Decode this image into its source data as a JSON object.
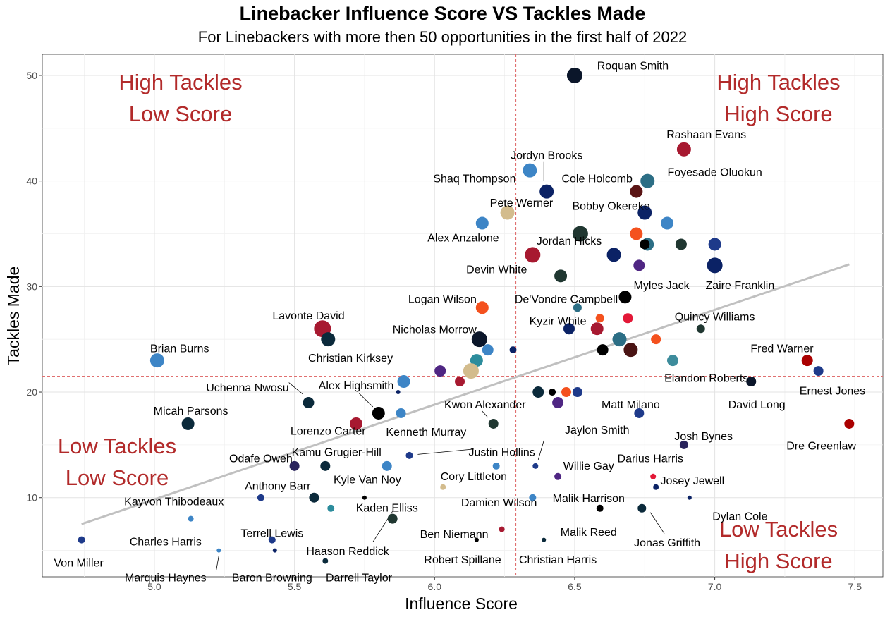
{
  "chart_data": {
    "type": "scatter",
    "title": "Linebacker Influence Score VS Tackles Made",
    "subtitle": "For Linebackers with more then 50 opportunities in the first half of 2022",
    "xlabel": "Influence Score",
    "ylabel": "Tackles Made",
    "xlim": [
      4.6,
      7.6
    ],
    "ylim": [
      2.5,
      52
    ],
    "xticks": [
      "5.0",
      "5.5",
      "6.0",
      "6.5",
      "7.0",
      "7.5"
    ],
    "yticks": [
      "10",
      "20",
      "30",
      "40",
      "50"
    ],
    "grid": true,
    "reference_lines": {
      "x": 6.29,
      "y": 21.5,
      "color": "#e07070"
    },
    "trend_line": {
      "x": [
        4.74,
        7.48
      ],
      "y": [
        7.5,
        32.1
      ],
      "color": "#c0c0c0"
    },
    "quadrant_labels": [
      {
        "line1": "High Tackles",
        "line2": "Low Score",
        "position": "top-left"
      },
      {
        "line1": "High Tackles",
        "line2": "High Score",
        "position": "top-right"
      },
      {
        "line1": "Low Tackles",
        "line2": "Low Score",
        "position": "bottom-left"
      },
      {
        "line1": "Low Tackles",
        "line2": "High Score",
        "position": "bottom-right"
      }
    ],
    "points": [
      {
        "x": 6.5,
        "y": 50,
        "r": 11,
        "color": "#0b162a"
      },
      {
        "x": 6.89,
        "y": 43,
        "r": 10,
        "color": "#a71930"
      },
      {
        "x": 6.34,
        "y": 41,
        "r": 10,
        "color": "#3d85c6"
      },
      {
        "x": 6.76,
        "y": 40,
        "r": 10,
        "color": "#2c6e85"
      },
      {
        "x": 6.4,
        "y": 39,
        "r": 10,
        "color": "#0b2265"
      },
      {
        "x": 6.72,
        "y": 39,
        "r": 9,
        "color": "#5a1414"
      },
      {
        "x": 6.26,
        "y": 37,
        "r": 10,
        "color": "#d3bc8d"
      },
      {
        "x": 6.75,
        "y": 37,
        "r": 10,
        "color": "#0b2265"
      },
      {
        "x": 6.17,
        "y": 36,
        "r": 9,
        "color": "#3d85c6"
      },
      {
        "x": 6.83,
        "y": 36,
        "r": 9,
        "color": "#3d85c6"
      },
      {
        "x": 6.52,
        "y": 35,
        "r": 11,
        "color": "#203731"
      },
      {
        "x": 6.72,
        "y": 35,
        "r": 9,
        "color": "#f4511e"
      },
      {
        "x": 6.76,
        "y": 34,
        "r": 9,
        "color": "#2c6e85"
      },
      {
        "x": 6.75,
        "y": 34,
        "r": 7,
        "color": "#000000"
      },
      {
        "x": 6.88,
        "y": 34,
        "r": 8,
        "color": "#203731"
      },
      {
        "x": 7.0,
        "y": 34,
        "r": 9,
        "color": "#1e3a8a"
      },
      {
        "x": 6.35,
        "y": 33,
        "r": 11,
        "color": "#a71930"
      },
      {
        "x": 6.64,
        "y": 33,
        "r": 10,
        "color": "#0b2265"
      },
      {
        "x": 6.73,
        "y": 32,
        "r": 8,
        "color": "#4f2683"
      },
      {
        "x": 7.0,
        "y": 32,
        "r": 11,
        "color": "#0b2265"
      },
      {
        "x": 6.45,
        "y": 31,
        "r": 9,
        "color": "#203731"
      },
      {
        "x": 6.68,
        "y": 29,
        "r": 9,
        "color": "#000000"
      },
      {
        "x": 6.17,
        "y": 28,
        "r": 9,
        "color": "#f4511e"
      },
      {
        "x": 6.51,
        "y": 28,
        "r": 6,
        "color": "#2c6e85"
      },
      {
        "x": 6.59,
        "y": 27,
        "r": 6,
        "color": "#f4511e"
      },
      {
        "x": 6.69,
        "y": 27,
        "r": 7,
        "color": "#e31837"
      },
      {
        "x": 6.95,
        "y": 26,
        "r": 6,
        "color": "#203731"
      },
      {
        "x": 5.6,
        "y": 26,
        "r": 12,
        "color": "#a71930"
      },
      {
        "x": 5.62,
        "y": 25,
        "r": 10,
        "color": "#0b2a3b"
      },
      {
        "x": 6.16,
        "y": 25,
        "r": 11,
        "color": "#0b162a"
      },
      {
        "x": 6.66,
        "y": 25,
        "r": 10,
        "color": "#2c6e85"
      },
      {
        "x": 6.48,
        "y": 26,
        "r": 8,
        "color": "#0b2265"
      },
      {
        "x": 6.58,
        "y": 26,
        "r": 9,
        "color": "#a71930"
      },
      {
        "x": 6.79,
        "y": 25,
        "r": 7,
        "color": "#f4511e"
      },
      {
        "x": 6.19,
        "y": 24,
        "r": 8,
        "color": "#3d85c6"
      },
      {
        "x": 6.28,
        "y": 24,
        "r": 5,
        "color": "#0b2265"
      },
      {
        "x": 6.6,
        "y": 24,
        "r": 8,
        "color": "#000000"
      },
      {
        "x": 6.7,
        "y": 24,
        "r": 10,
        "color": "#4a1414"
      },
      {
        "x": 5.01,
        "y": 23,
        "r": 10,
        "color": "#3d85c6"
      },
      {
        "x": 6.15,
        "y": 23,
        "r": 9,
        "color": "#2c8c9c"
      },
      {
        "x": 6.85,
        "y": 23,
        "r": 8,
        "color": "#3d8c9c"
      },
      {
        "x": 7.33,
        "y": 23,
        "r": 8,
        "color": "#aa0000"
      },
      {
        "x": 6.02,
        "y": 22,
        "r": 8,
        "color": "#4f2683"
      },
      {
        "x": 6.13,
        "y": 22,
        "r": 11,
        "color": "#d3bc8d"
      },
      {
        "x": 7.37,
        "y": 22,
        "r": 7,
        "color": "#1e3a8a"
      },
      {
        "x": 6.09,
        "y": 21,
        "r": 7,
        "color": "#a71930"
      },
      {
        "x": 5.89,
        "y": 21,
        "r": 9,
        "color": "#3d85c6"
      },
      {
        "x": 7.13,
        "y": 21,
        "r": 7,
        "color": "#0b162a"
      },
      {
        "x": 5.87,
        "y": 20,
        "r": 3,
        "color": "#0b2265"
      },
      {
        "x": 6.37,
        "y": 20,
        "r": 8,
        "color": "#0b2a3b"
      },
      {
        "x": 6.42,
        "y": 20,
        "r": 5,
        "color": "#000000"
      },
      {
        "x": 6.47,
        "y": 20,
        "r": 7,
        "color": "#f4511e"
      },
      {
        "x": 6.51,
        "y": 20,
        "r": 7,
        "color": "#1e3a8a"
      },
      {
        "x": 5.55,
        "y": 19,
        "r": 8,
        "color": "#0b2a3b"
      },
      {
        "x": 6.44,
        "y": 19,
        "r": 8,
        "color": "#4f2683"
      },
      {
        "x": 5.8,
        "y": 18,
        "r": 9,
        "color": "#000000"
      },
      {
        "x": 5.88,
        "y": 18,
        "r": 7,
        "color": "#3d85c6"
      },
      {
        "x": 6.73,
        "y": 18,
        "r": 7,
        "color": "#1e3a8a"
      },
      {
        "x": 5.12,
        "y": 17,
        "r": 9,
        "color": "#0b2a3b"
      },
      {
        "x": 5.72,
        "y": 17,
        "r": 9,
        "color": "#a71930"
      },
      {
        "x": 6.21,
        "y": 17,
        "r": 7,
        "color": "#203731"
      },
      {
        "x": 7.48,
        "y": 17,
        "r": 7,
        "color": "#aa0000"
      },
      {
        "x": 6.89,
        "y": 15,
        "r": 6,
        "color": "#29235c"
      },
      {
        "x": 5.91,
        "y": 14,
        "r": 5,
        "color": "#1e3a8a"
      },
      {
        "x": 5.5,
        "y": 13,
        "r": 7,
        "color": "#29235c"
      },
      {
        "x": 5.61,
        "y": 13,
        "r": 7,
        "color": "#0b2a3b"
      },
      {
        "x": 5.83,
        "y": 13,
        "r": 7,
        "color": "#3d85c6"
      },
      {
        "x": 6.22,
        "y": 13,
        "r": 5,
        "color": "#3d85c6"
      },
      {
        "x": 6.36,
        "y": 13,
        "r": 4,
        "color": "#1e3a8a"
      },
      {
        "x": 6.44,
        "y": 12,
        "r": 5,
        "color": "#4f2683"
      },
      {
        "x": 6.78,
        "y": 12,
        "r": 4,
        "color": "#e31837"
      },
      {
        "x": 6.03,
        "y": 11,
        "r": 4,
        "color": "#d3bc8d"
      },
      {
        "x": 6.79,
        "y": 11,
        "r": 4,
        "color": "#0b2265"
      },
      {
        "x": 5.38,
        "y": 10,
        "r": 5,
        "color": "#1e3a8a"
      },
      {
        "x": 5.57,
        "y": 10,
        "r": 7,
        "color": "#0b2a3b"
      },
      {
        "x": 5.75,
        "y": 10,
        "r": 3,
        "color": "#000000"
      },
      {
        "x": 6.35,
        "y": 10,
        "r": 5,
        "color": "#3d85c6"
      },
      {
        "x": 6.91,
        "y": 10,
        "r": 3,
        "color": "#0b2265"
      },
      {
        "x": 5.63,
        "y": 9,
        "r": 5,
        "color": "#2c8c9c"
      },
      {
        "x": 6.59,
        "y": 9,
        "r": 5,
        "color": "#000000"
      },
      {
        "x": 6.74,
        "y": 9,
        "r": 6,
        "color": "#0b2a3b"
      },
      {
        "x": 5.13,
        "y": 8,
        "r": 4,
        "color": "#3d85c6"
      },
      {
        "x": 5.85,
        "y": 8,
        "r": 7,
        "color": "#203731"
      },
      {
        "x": 6.24,
        "y": 7,
        "r": 4,
        "color": "#a71930"
      },
      {
        "x": 4.74,
        "y": 6,
        "r": 5,
        "color": "#1e3a8a"
      },
      {
        "x": 5.42,
        "y": 6,
        "r": 5,
        "color": "#1e3a8a"
      },
      {
        "x": 6.15,
        "y": 6,
        "r": 3,
        "color": "#000000"
      },
      {
        "x": 6.39,
        "y": 6,
        "r": 3,
        "color": "#0b2a3b"
      },
      {
        "x": 5.23,
        "y": 5,
        "r": 3,
        "color": "#3d85c6"
      },
      {
        "x": 5.43,
        "y": 5,
        "r": 3,
        "color": "#0b2265"
      },
      {
        "x": 5.61,
        "y": 4,
        "r": 4,
        "color": "#0b2a3b"
      }
    ],
    "labels": [
      {
        "text": "Roquan Smith",
        "x": 6.58,
        "y": 50.9,
        "anchor": "start"
      },
      {
        "text": "Rashaan Evans",
        "x": 6.97,
        "y": 44.4,
        "anchor": "middle"
      },
      {
        "text": "Jordyn Brooks",
        "x": 6.4,
        "y": 42.4,
        "anchor": "middle"
      },
      {
        "text": "Foyesade Oluokun",
        "x": 7.0,
        "y": 40.8,
        "anchor": "middle"
      },
      {
        "text": "Shaq Thompson",
        "x": 6.29,
        "y": 40.2,
        "anchor": "end"
      },
      {
        "text": "Cole Holcomb",
        "x": 6.58,
        "y": 40.2,
        "anchor": "middle"
      },
      {
        "text": "Pete Werner",
        "x": 6.31,
        "y": 37.9,
        "anchor": "middle"
      },
      {
        "text": "Bobby Okereke",
        "x": 6.63,
        "y": 37.6,
        "anchor": "middle"
      },
      {
        "text": "Alex Anzalone",
        "x": 6.23,
        "y": 34.6,
        "anchor": "end"
      },
      {
        "text": "Jordan Hicks",
        "x": 6.48,
        "y": 34.3,
        "anchor": "middle"
      },
      {
        "text": "Devin White",
        "x": 6.33,
        "y": 31.6,
        "anchor": "end"
      },
      {
        "text": "Myles Jack",
        "x": 6.81,
        "y": 30.1,
        "anchor": "middle"
      },
      {
        "text": "Zaire Franklin",
        "x": 7.09,
        "y": 30.1,
        "anchor": "middle"
      },
      {
        "text": "Logan Wilson",
        "x": 6.15,
        "y": 28.8,
        "anchor": "end"
      },
      {
        "text": "De'Vondre Campbell",
        "x": 6.47,
        "y": 28.8,
        "anchor": "middle"
      },
      {
        "text": "Quincy Williams",
        "x": 7.0,
        "y": 27.1,
        "anchor": "middle"
      },
      {
        "text": "Kyzir White",
        "x": 6.44,
        "y": 26.7,
        "anchor": "middle"
      },
      {
        "text": "Lavonte David",
        "x": 5.55,
        "y": 27.2,
        "anchor": "middle"
      },
      {
        "text": "Nicholas Morrow",
        "x": 6.15,
        "y": 25.9,
        "anchor": "end"
      },
      {
        "text": "Christian Kirksey",
        "x": 5.7,
        "y": 23.2,
        "anchor": "middle"
      },
      {
        "text": "Brian Burns",
        "x": 5.09,
        "y": 24.1,
        "anchor": "middle"
      },
      {
        "text": "Fred Warner",
        "x": 7.24,
        "y": 24.1,
        "anchor": "middle"
      },
      {
        "text": "Elandon Roberts",
        "x": 6.97,
        "y": 21.3,
        "anchor": "middle"
      },
      {
        "text": "Uchenna Nwosu",
        "x": 5.48,
        "y": 20.4,
        "anchor": "end"
      },
      {
        "text": "Alex Highsmith",
        "x": 5.72,
        "y": 20.6,
        "anchor": "middle"
      },
      {
        "text": "Ernest Jones",
        "x": 7.42,
        "y": 20.1,
        "anchor": "middle"
      },
      {
        "text": "Kwon Alexander",
        "x": 6.18,
        "y": 18.8,
        "anchor": "middle"
      },
      {
        "text": "Matt Milano",
        "x": 6.7,
        "y": 18.8,
        "anchor": "middle"
      },
      {
        "text": "David Long",
        "x": 7.15,
        "y": 18.8,
        "anchor": "middle"
      },
      {
        "text": "Micah Parsons",
        "x": 5.13,
        "y": 18.2,
        "anchor": "middle"
      },
      {
        "text": "Lorenzo Carter",
        "x": 5.62,
        "y": 16.3,
        "anchor": "middle"
      },
      {
        "text": "Kenneth Murray",
        "x": 5.97,
        "y": 16.2,
        "anchor": "middle"
      },
      {
        "text": "Jaylon Smith",
        "x": 6.58,
        "y": 16.4,
        "anchor": "middle"
      },
      {
        "text": "Josh Bynes",
        "x": 6.96,
        "y": 15.8,
        "anchor": "middle"
      },
      {
        "text": "Dre Greenlaw",
        "x": 7.38,
        "y": 14.9,
        "anchor": "middle"
      },
      {
        "text": "Justin Hollins",
        "x": 6.24,
        "y": 14.3,
        "anchor": "middle"
      },
      {
        "text": "Kamu Grugier-Hill",
        "x": 5.65,
        "y": 14.3,
        "anchor": "middle"
      },
      {
        "text": "Odafe Oweh",
        "x": 5.38,
        "y": 13.7,
        "anchor": "middle"
      },
      {
        "text": "Darius Harris",
        "x": 6.77,
        "y": 13.7,
        "anchor": "middle"
      },
      {
        "text": "Willie Gay",
        "x": 6.55,
        "y": 13.0,
        "anchor": "middle"
      },
      {
        "text": "Kyle Van Noy",
        "x": 5.76,
        "y": 11.7,
        "anchor": "middle"
      },
      {
        "text": "Cory Littleton",
        "x": 6.14,
        "y": 12.0,
        "anchor": "middle"
      },
      {
        "text": "Josey Jewell",
        "x": 6.92,
        "y": 11.6,
        "anchor": "middle"
      },
      {
        "text": "Anthony Barr",
        "x": 5.44,
        "y": 11.1,
        "anchor": "middle"
      },
      {
        "text": "Malik Harrison",
        "x": 6.55,
        "y": 9.9,
        "anchor": "middle"
      },
      {
        "text": "Kayvon Thibodeaux",
        "x": 5.07,
        "y": 9.6,
        "anchor": "middle"
      },
      {
        "text": "Damien Wilson",
        "x": 6.23,
        "y": 9.5,
        "anchor": "middle"
      },
      {
        "text": "Kaden Elliss",
        "x": 5.83,
        "y": 9.0,
        "anchor": "middle"
      },
      {
        "text": "Dylan Cole",
        "x": 7.09,
        "y": 8.2,
        "anchor": "middle"
      },
      {
        "text": "Ben Niemann",
        "x": 6.07,
        "y": 6.5,
        "anchor": "middle"
      },
      {
        "text": "Malik Reed",
        "x": 6.55,
        "y": 6.7,
        "anchor": "middle"
      },
      {
        "text": "Jonas Griffith",
        "x": 6.83,
        "y": 5.7,
        "anchor": "middle"
      },
      {
        "text": "Terrell Lewis",
        "x": 5.42,
        "y": 6.6,
        "anchor": "middle"
      },
      {
        "text": "Charles Harris",
        "x": 5.04,
        "y": 5.8,
        "anchor": "middle"
      },
      {
        "text": "Haason Reddick",
        "x": 5.69,
        "y": 4.9,
        "anchor": "middle"
      },
      {
        "text": "Von Miller",
        "x": 4.73,
        "y": 3.8,
        "anchor": "middle"
      },
      {
        "text": "Robert Spillane",
        "x": 6.1,
        "y": 4.1,
        "anchor": "middle"
      },
      {
        "text": "Christian Harris",
        "x": 6.44,
        "y": 4.1,
        "anchor": "middle"
      },
      {
        "text": "Marquis Haynes",
        "x": 5.04,
        "y": 2.4,
        "anchor": "middle"
      },
      {
        "text": "Baron Browning",
        "x": 5.42,
        "y": 2.4,
        "anchor": "middle"
      },
      {
        "text": "Darrell Taylor",
        "x": 5.73,
        "y": 2.4,
        "anchor": "middle"
      }
    ],
    "leader_lines": [
      {
        "x1": 6.39,
        "y1": 41.8,
        "x2": 6.39,
        "y2": 40.0
      },
      {
        "x1": 5.48,
        "y1": 20.9,
        "x2": 5.53,
        "y2": 19.8
      },
      {
        "x1": 5.73,
        "y1": 19.9,
        "x2": 5.78,
        "y2": 18.6
      },
      {
        "x1": 6.17,
        "y1": 18.2,
        "x2": 6.19,
        "y2": 17.6
      },
      {
        "x1": 6.39,
        "y1": 15.4,
        "x2": 6.37,
        "y2": 13.6
      },
      {
        "x1": 6.14,
        "y1": 14.6,
        "x2": 5.94,
        "y2": 14.1
      },
      {
        "x1": 5.85,
        "y1": 8.7,
        "x2": 5.78,
        "y2": 5.8
      },
      {
        "x1": 6.77,
        "y1": 8.6,
        "x2": 6.82,
        "y2": 6.6
      },
      {
        "x1": 5.22,
        "y1": 3.0,
        "x2": 5.23,
        "y2": 4.5
      }
    ]
  }
}
